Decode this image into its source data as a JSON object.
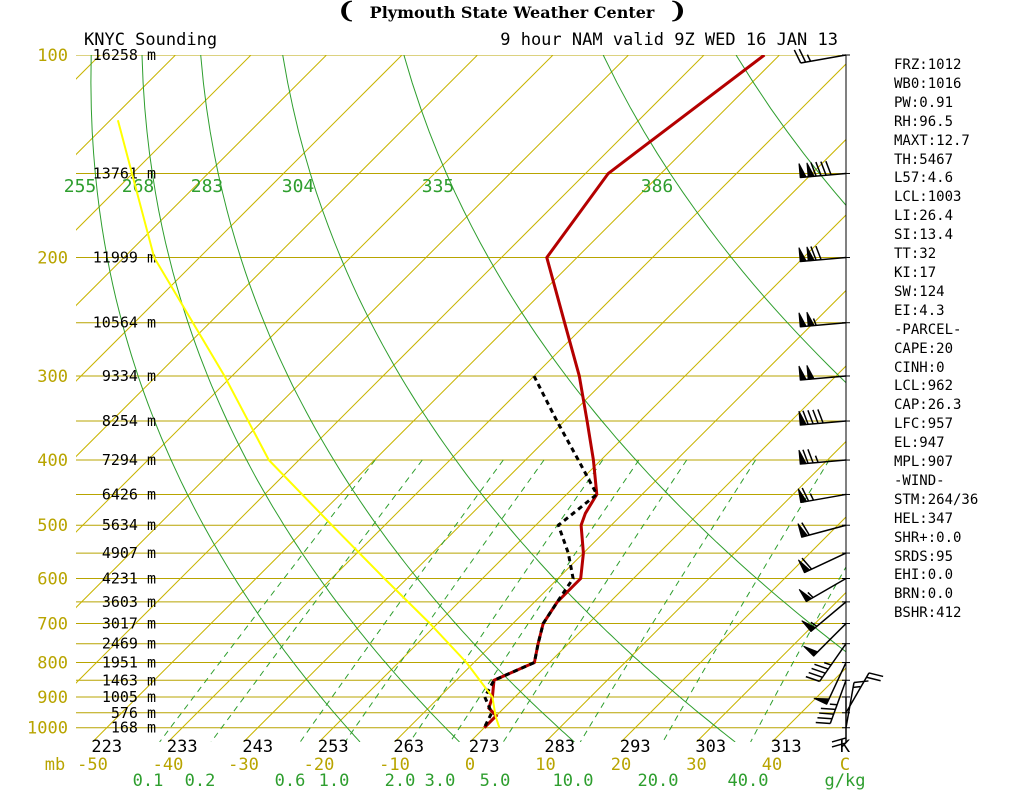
{
  "header": {
    "title": "Plymouth State Weather Center",
    "left_label": "KNYC Sounding",
    "right_label": "9 hour NAM valid 9Z WED 16 JAN 13"
  },
  "colors": {
    "isobar": "#b8a400",
    "isotherm": "#c8b400",
    "dry_adiabat": "#2e9e2e",
    "mixing_ratio": "#2e9e2e",
    "temperature": "#b40000",
    "dewpoint": "#000000",
    "parcel": "#ffff00",
    "axis_text_yellow": "#b8a400",
    "axis_text_green": "#2e9e2e"
  },
  "chart_data": {
    "type": "line",
    "title": "KNYC Sounding",
    "pressure_levels_mb": [
      100,
      200,
      300,
      400,
      500,
      600,
      700,
      800,
      900,
      1000
    ],
    "pressure_tick_labels": [
      "100",
      "200",
      "300",
      "400",
      "500",
      "600",
      "700",
      "800",
      "900",
      "1000"
    ],
    "pressure_axis_unit": "mb",
    "temperature_ticks_c": [
      "-50",
      "-40",
      "-30",
      "-20",
      "-10",
      "0",
      "10",
      "20",
      "30",
      "40",
      "C"
    ],
    "temperature_ticks_k": [
      "223",
      "233",
      "243",
      "253",
      "263",
      "273",
      "283",
      "293",
      "303",
      "313",
      "K"
    ],
    "mixing_ratio_ticks": [
      "0.1",
      "0.2",
      "0.6",
      "1.0",
      "2.0",
      "3.0",
      "5.0",
      "10.0",
      "20.0",
      "40.0",
      "g/kg"
    ],
    "theta_labels": [
      "255",
      "268",
      "283",
      "304",
      "335",
      "386"
    ],
    "height_labels": [
      {
        "p": 100,
        "label": "16258 m"
      },
      {
        "p": 150,
        "label": "13761 m"
      },
      {
        "p": 200,
        "label": "11999 m"
      },
      {
        "p": 250,
        "label": "10564 m"
      },
      {
        "p": 300,
        "label": "9334 m"
      },
      {
        "p": 350,
        "label": "8254 m"
      },
      {
        "p": 400,
        "label": "7294 m"
      },
      {
        "p": 450,
        "label": "6426 m"
      },
      {
        "p": 500,
        "label": "5634 m"
      },
      {
        "p": 550,
        "label": "4907 m"
      },
      {
        "p": 600,
        "label": "4231 m"
      },
      {
        "p": 650,
        "label": "3603 m"
      },
      {
        "p": 700,
        "label": "3017 m"
      },
      {
        "p": 750,
        "label": "2469 m"
      },
      {
        "p": 800,
        "label": "1951 m"
      },
      {
        "p": 850,
        "label": "1463 m"
      },
      {
        "p": 900,
        "label": "1005 m"
      },
      {
        "p": 950,
        "label": "576 m"
      },
      {
        "p": 1000,
        "label": "168 m"
      }
    ],
    "series": [
      {
        "name": "temperature",
        "points": [
          {
            "p": 100,
            "t": -52
          },
          {
            "p": 150,
            "t": -57
          },
          {
            "p": 200,
            "t": -54
          },
          {
            "p": 250,
            "t": -43
          },
          {
            "p": 300,
            "t": -34
          },
          {
            "p": 350,
            "t": -27
          },
          {
            "p": 400,
            "t": -21
          },
          {
            "p": 450,
            "t": -16
          },
          {
            "p": 480,
            "t": -15
          },
          {
            "p": 500,
            "t": -14
          },
          {
            "p": 550,
            "t": -10
          },
          {
            "p": 600,
            "t": -7
          },
          {
            "p": 650,
            "t": -7
          },
          {
            "p": 700,
            "t": -6
          },
          {
            "p": 750,
            "t": -4
          },
          {
            "p": 800,
            "t": -2
          },
          {
            "p": 850,
            "t": -5
          },
          {
            "p": 900,
            "t": -3
          },
          {
            "p": 935,
            "t": -2
          },
          {
            "p": 960,
            "t": 0
          },
          {
            "p": 1000,
            "t": 0
          }
        ]
      },
      {
        "name": "dewpoint",
        "points": [
          {
            "p": 300,
            "t": -40
          },
          {
            "p": 350,
            "t": -31
          },
          {
            "p": 400,
            "t": -23
          },
          {
            "p": 450,
            "t": -16
          },
          {
            "p": 500,
            "t": -17
          },
          {
            "p": 550,
            "t": -12
          },
          {
            "p": 600,
            "t": -8
          },
          {
            "p": 650,
            "t": -7
          },
          {
            "p": 700,
            "t": -6
          },
          {
            "p": 750,
            "t": -4
          },
          {
            "p": 800,
            "t": -2
          },
          {
            "p": 850,
            "t": -5
          },
          {
            "p": 900,
            "t": -4
          },
          {
            "p": 950,
            "t": -1
          },
          {
            "p": 1000,
            "t": 0
          }
        ]
      },
      {
        "name": "parcel",
        "points": [
          {
            "p": 125,
            "t": -129
          },
          {
            "p": 200,
            "t": -106
          },
          {
            "p": 300,
            "t": -81
          },
          {
            "p": 400,
            "t": -64
          },
          {
            "p": 500,
            "t": -47
          },
          {
            "p": 600,
            "t": -33
          },
          {
            "p": 700,
            "t": -21
          },
          {
            "p": 800,
            "t": -11
          },
          {
            "p": 900,
            "t": -3
          },
          {
            "p": 962,
            "t": 0
          },
          {
            "p": 1000,
            "t": 2
          }
        ]
      }
    ],
    "wind_barbs": [
      {
        "p": 100,
        "dir": 260,
        "speed_kt": 25
      },
      {
        "p": 150,
        "dir": 265,
        "speed_kt": 140
      },
      {
        "p": 200,
        "dir": 265,
        "speed_kt": 120
      },
      {
        "p": 250,
        "dir": 265,
        "speed_kt": 105
      },
      {
        "p": 300,
        "dir": 265,
        "speed_kt": 100
      },
      {
        "p": 350,
        "dir": 265,
        "speed_kt": 90
      },
      {
        "p": 400,
        "dir": 265,
        "speed_kt": 75
      },
      {
        "p": 450,
        "dir": 260,
        "speed_kt": 65
      },
      {
        "p": 500,
        "dir": 255,
        "speed_kt": 60
      },
      {
        "p": 550,
        "dir": 245,
        "speed_kt": 60
      },
      {
        "p": 600,
        "dir": 240,
        "speed_kt": 55
      },
      {
        "p": 650,
        "dir": 230,
        "speed_kt": 55
      },
      {
        "p": 700,
        "dir": 225,
        "speed_kt": 50
      },
      {
        "p": 750,
        "dir": 215,
        "speed_kt": 45
      },
      {
        "p": 800,
        "dir": 205,
        "speed_kt": 50
      },
      {
        "p": 850,
        "dir": 200,
        "speed_kt": 45
      },
      {
        "p": 900,
        "dir": 180,
        "speed_kt": 20
      },
      {
        "p": 950,
        "dir": 30,
        "speed_kt": 20
      },
      {
        "p": 1000,
        "dir": 10,
        "speed_kt": 15
      }
    ]
  },
  "stats": [
    "FRZ:1012",
    "WB0:1016",
    "PW:0.91",
    "RH:96.5",
    "MAXT:12.7",
    "TH:5467",
    "L57:4.6",
    "LCL:1003",
    "LI:26.4",
    "SI:13.4",
    "TT:32",
    "KI:17",
    "SW:124",
    "EI:4.3",
    "-PARCEL-",
    "CAPE:20",
    "CINH:0",
    "LCL:962",
    "CAP:26.3",
    "LFC:957",
    "EL:947",
    "MPL:907",
    "-WIND-",
    "STM:264/36",
    "HEL:347",
    "SHR+:0.0",
    "SRDS:95",
    "EHI:0.0",
    "BRN:0.0",
    "BSHR:412"
  ]
}
